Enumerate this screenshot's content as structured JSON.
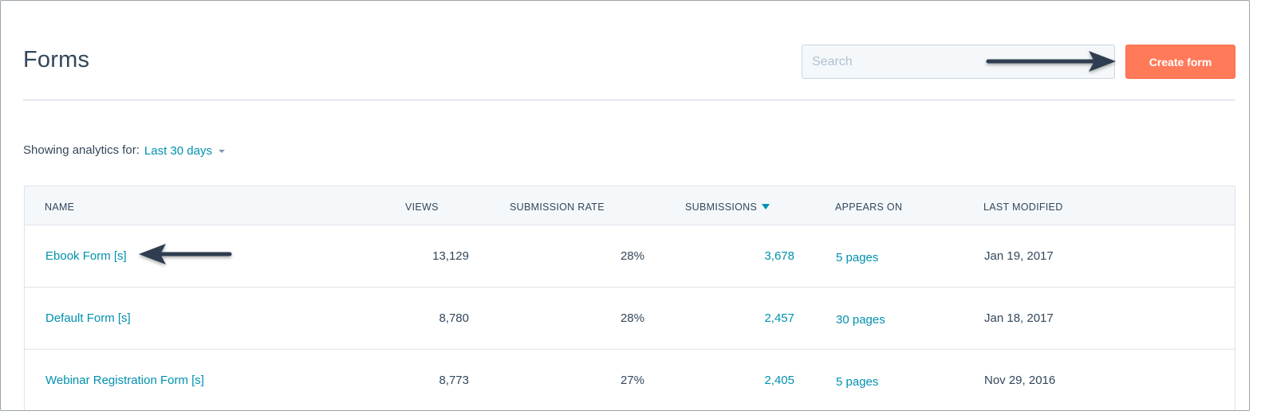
{
  "header": {
    "title": "Forms",
    "search_placeholder": "Search",
    "create_button": "Create form"
  },
  "analytics": {
    "label": "Showing analytics for:",
    "range": "Last 30 days"
  },
  "table": {
    "columns": [
      "NAME",
      "VIEWS",
      "SUBMISSION RATE",
      "SUBMISSIONS",
      "APPEARS ON",
      "LAST MODIFIED"
    ],
    "sorted_column": "SUBMISSIONS",
    "rows": [
      {
        "name": "Ebook Form [s]",
        "views": "13,129",
        "rate": "28%",
        "submissions": "3,678",
        "appears_on": "5 pages",
        "modified": "Jan 19, 2017"
      },
      {
        "name": "Default Form [s]",
        "views": "8,780",
        "rate": "28%",
        "submissions": "2,457",
        "appears_on": "30 pages",
        "modified": "Jan 18, 2017"
      },
      {
        "name": "Webinar Registration Form [s]",
        "views": "8,773",
        "rate": "27%",
        "submissions": "2,405",
        "appears_on": "5 pages",
        "modified": "Nov 29, 2016"
      }
    ]
  },
  "colors": {
    "accent": "#0091ae",
    "primary_button": "#ff7a59",
    "text": "#33475b",
    "annotation_arrow": "#2d3e50"
  }
}
